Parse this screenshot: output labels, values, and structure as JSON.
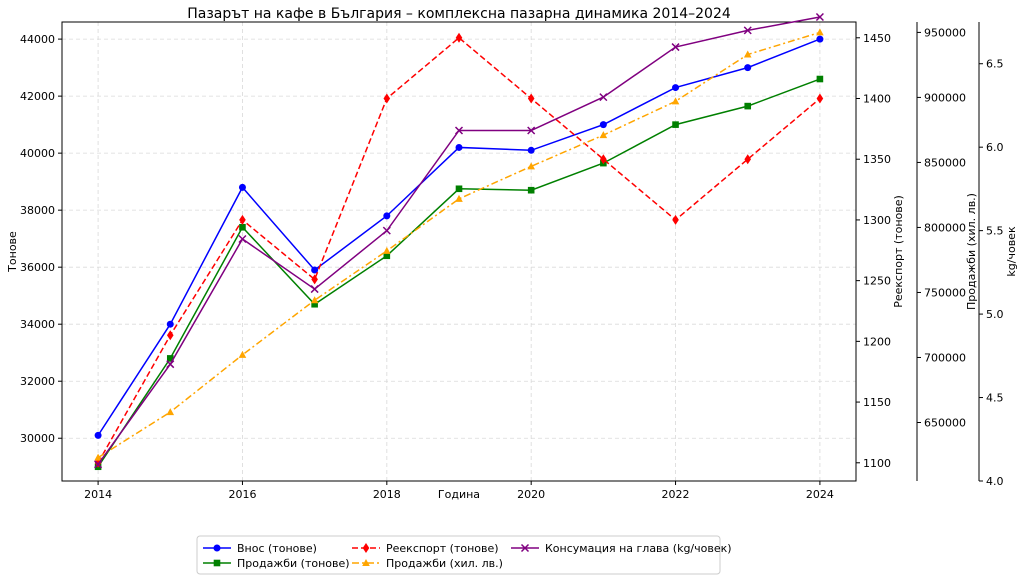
{
  "chart_data": {
    "type": "line",
    "title": "Пазарът на кафе в България – комплексна пазарна динамика 2014–2024",
    "xlabel": "Година",
    "x": [
      2014,
      2015,
      2016,
      2017,
      2018,
      2019,
      2020,
      2021,
      2022,
      2023,
      2024
    ],
    "x_ticks": [
      "2014",
      "2016",
      "2018",
      "2020",
      "2022",
      "2024"
    ],
    "grid": true,
    "legend_position": "bottom-center",
    "axes": [
      {
        "id": "tons",
        "label": "Тонове",
        "side": "left",
        "ylim": [
          28500,
          44600
        ],
        "ticks": [
          30000,
          32000,
          34000,
          36000,
          38000,
          40000,
          42000,
          44000
        ],
        "tick_labels": [
          "30000",
          "32000",
          "34000",
          "36000",
          "38000",
          "40000",
          "42000",
          "44000"
        ]
      },
      {
        "id": "reexport",
        "label": "Реекспорт (тонове)",
        "side": "right",
        "ylim": [
          1085,
          1463
        ],
        "ticks": [
          1100,
          1150,
          1200,
          1250,
          1300,
          1350,
          1400,
          1450
        ],
        "tick_labels": [
          "1100",
          "1150",
          "1200",
          "1250",
          "1300",
          "1350",
          "1400",
          "1450"
        ]
      },
      {
        "id": "sales_bgn",
        "label": "Продажби (хил. лв.)",
        "side": "right",
        "ylim": [
          605000,
          958000
        ],
        "ticks": [
          650000,
          700000,
          750000,
          800000,
          850000,
          900000,
          950000
        ],
        "tick_labels": [
          "650000",
          "700000",
          "750000",
          "800000",
          "850000",
          "900000",
          "950000"
        ]
      },
      {
        "id": "per_capita",
        "label": "kg/човек",
        "side": "right",
        "ylim": [
          4.0,
          6.75
        ],
        "ticks": [
          4.0,
          4.5,
          5.0,
          5.5,
          6.0,
          6.5
        ],
        "tick_labels": [
          "4.0",
          "4.5",
          "5.0",
          "5.5",
          "6.0",
          "6.5"
        ]
      }
    ],
    "series": [
      {
        "name": "Внос (тонове)",
        "axis": "tons",
        "color": "#0000ff",
        "marker": "circle",
        "dash": "solid",
        "values": [
          30100,
          34000,
          38800,
          35900,
          37800,
          40200,
          40100,
          41000,
          42300,
          43000,
          44000
        ]
      },
      {
        "name": "Продажби (тонове)",
        "axis": "tons",
        "color": "#008000",
        "marker": "square",
        "dash": "solid",
        "values": [
          29000,
          32800,
          37400,
          34700,
          36400,
          38750,
          38700,
          39650,
          41000,
          41650,
          42600
        ]
      },
      {
        "name": "Реекспорт (тонове)",
        "axis": "reexport",
        "color": "#ff0000",
        "marker": "diamond",
        "dash": "dashed",
        "values": [
          1100,
          1205,
          1300,
          1251,
          1400,
          1450,
          1400,
          1350,
          1300,
          1350,
          1400
        ]
      },
      {
        "name": "Продажби (хил. лв.)",
        "axis": "sales_bgn",
        "color": "#ffa500",
        "marker": "triangle",
        "dash": "dashdot",
        "values": [
          623000,
          658000,
          702000,
          744000,
          782000,
          822000,
          847000,
          871000,
          897000,
          933000,
          950000
        ]
      },
      {
        "name": "Консумация на глава (kg/човек)",
        "axis": "per_capita",
        "color": "#800080",
        "marker": "x",
        "dash": "solid",
        "values": [
          4.1,
          4.7,
          5.45,
          5.15,
          5.5,
          6.1,
          6.1,
          6.3,
          6.6,
          6.7,
          6.78
        ]
      }
    ]
  }
}
